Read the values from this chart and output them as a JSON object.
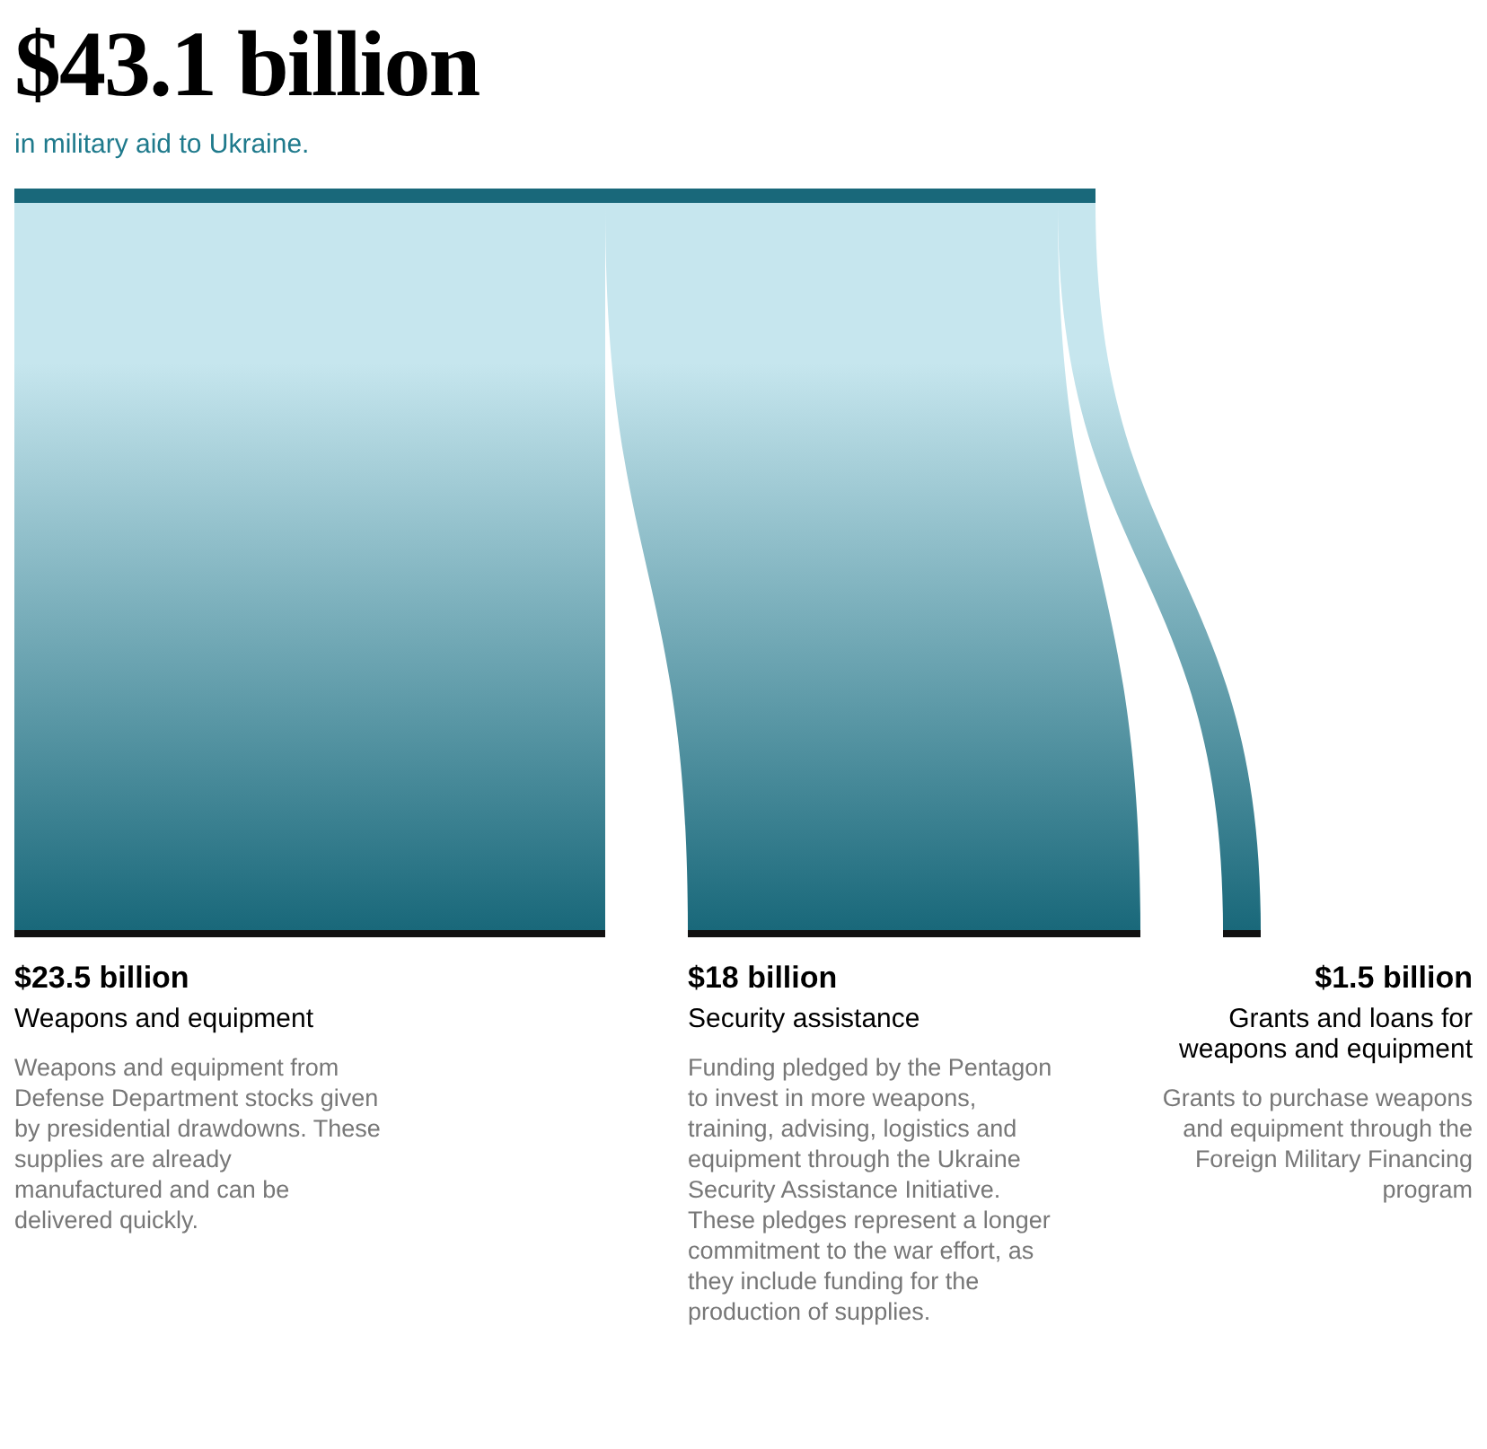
{
  "chart_data": {
    "type": "other",
    "title": "$43.1 billion",
    "subtitle": "in military aid to Ukraine.",
    "categories": [
      "Weapons and equipment",
      "Security assistance",
      "Grants and loans for weapons and equipment"
    ],
    "values": [
      23.5,
      18,
      1.5
    ],
    "value_labels": [
      "$23.5 billion",
      "$18 billion",
      "$1.5 billion"
    ],
    "color": "#19687a",
    "annotations": [
      "Weapons and equipment from Defense Department stocks given by presidential drawdowns. These supplies are already manufactured and can be delivered quickly.",
      "Funding pledged by the Pentagon to invest in more weapons, training, advising, logistics and equipment through the Ukraine Security Assistance Initiative. These pledges represent a longer commitment to the war effort, as they include funding for the production of supplies.",
      "Grants to purchase weapons and equipment through the Foreign Military Financing program"
    ]
  }
}
